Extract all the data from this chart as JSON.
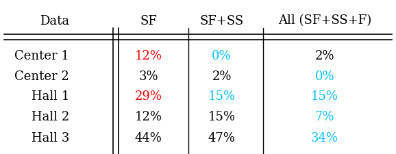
{
  "headers": [
    "Data",
    "SF",
    "SF+SS",
    "All (SF+SS+F)"
  ],
  "rows": [
    [
      "Center 1",
      "12%",
      "0%",
      "2%"
    ],
    [
      "Center 2",
      "3%",
      "2%",
      "0%"
    ],
    [
      "Hall 1",
      "29%",
      "15%",
      "15%"
    ],
    [
      "Hall 2",
      "12%",
      "15%",
      "7%"
    ],
    [
      "Hall 3",
      "44%",
      "47%",
      "34%"
    ]
  ],
  "cell_colors": [
    [
      "black",
      "red",
      "#00bfff",
      "black"
    ],
    [
      "black",
      "black",
      "black",
      "#00bfff"
    ],
    [
      "black",
      "red",
      "#00bfff",
      "#00bfff"
    ],
    [
      "black",
      "black",
      "black",
      "#00bfff"
    ],
    [
      "black",
      "black",
      "black",
      "#00bfff"
    ]
  ],
  "figsize": [
    5.78,
    2.26
  ],
  "dpi": 100,
  "fontsize": 13,
  "bg_color": "white"
}
